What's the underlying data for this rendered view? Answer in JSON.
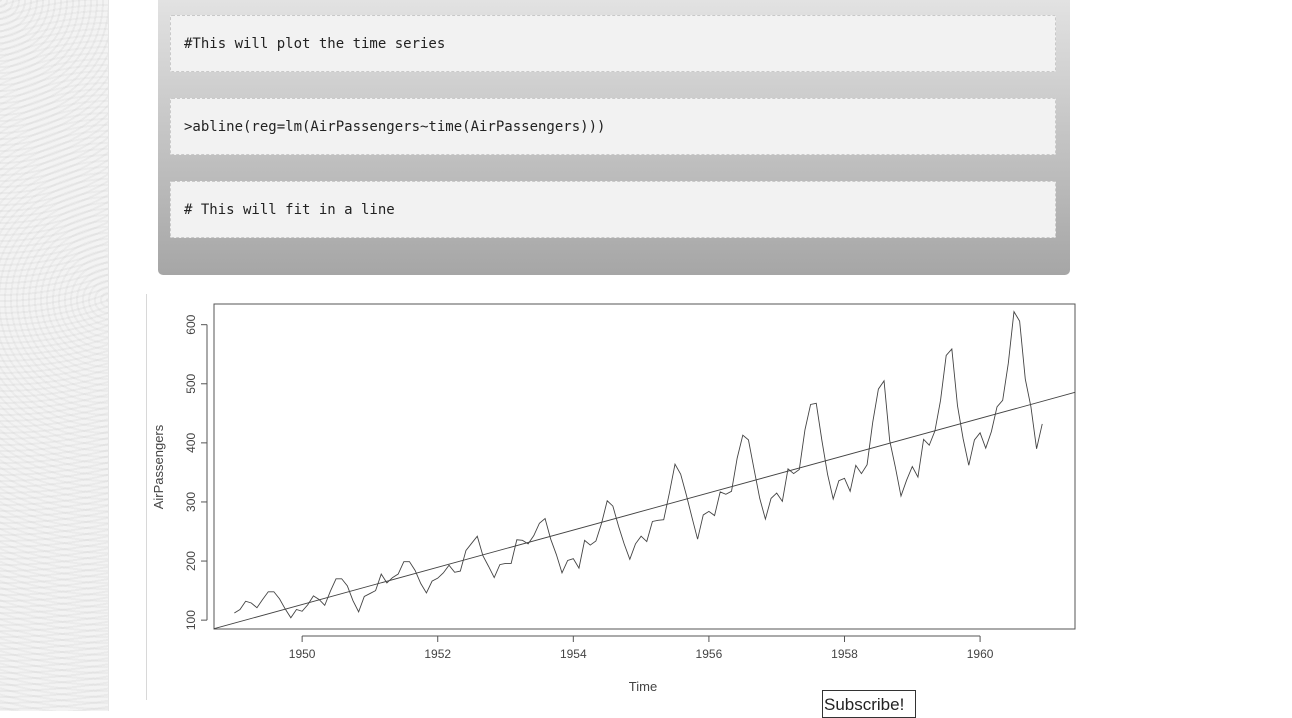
{
  "code_blocks": [
    "#This will plot the time series",
    ">abline(reg=lm(AirPassengers~time(AirPassengers)))",
    "# This will fit in a line"
  ],
  "subscribe_label": "Subscribe!",
  "chart_data": {
    "type": "line",
    "xlabel": "Time",
    "ylabel": "AirPassengers",
    "xlim": [
      1948.7,
      1961.4
    ],
    "ylim": [
      85,
      635
    ],
    "x_ticks": [
      1950,
      1952,
      1954,
      1956,
      1958,
      1960
    ],
    "y_ticks": [
      100,
      200,
      300,
      400,
      500,
      600
    ],
    "x_start": 1949,
    "x_step": 0.083333,
    "series": [
      {
        "values": [
          112,
          118,
          132,
          129,
          121,
          135,
          148,
          148,
          136,
          119,
          104,
          118,
          115,
          126,
          141,
          135,
          125,
          149,
          170,
          170,
          158,
          133,
          114,
          140,
          145,
          150,
          178,
          163,
          172,
          178,
          199,
          199,
          184,
          162,
          146,
          166,
          171,
          180,
          193,
          181,
          183,
          218,
          230,
          242,
          209,
          191,
          172,
          194,
          196,
          196,
          236,
          235,
          229,
          243,
          264,
          272,
          237,
          211,
          180,
          201,
          204,
          188,
          235,
          227,
          234,
          264,
          302,
          293,
          259,
          229,
          203,
          229,
          242,
          233,
          267,
          269,
          270,
          315,
          364,
          347,
          312,
          274,
          237,
          278,
          284,
          277,
          317,
          313,
          318,
          374,
          413,
          405,
          355,
          306,
          271,
          306,
          315,
          301,
          356,
          348,
          355,
          422,
          465,
          467,
          404,
          347,
          305,
          336,
          340,
          318,
          362,
          348,
          363,
          435,
          491,
          505,
          404,
          359,
          310,
          337,
          360,
          342,
          406,
          396,
          420,
          472,
          548,
          559,
          463,
          407,
          362,
          405,
          417,
          391,
          419,
          461,
          472,
          535,
          622,
          606,
          508,
          461,
          390,
          432
        ]
      },
      {
        "type": "regression",
        "points": [
          [
            1948.7,
            85.5
          ],
          [
            1961.4,
            485.5
          ]
        ]
      }
    ]
  }
}
